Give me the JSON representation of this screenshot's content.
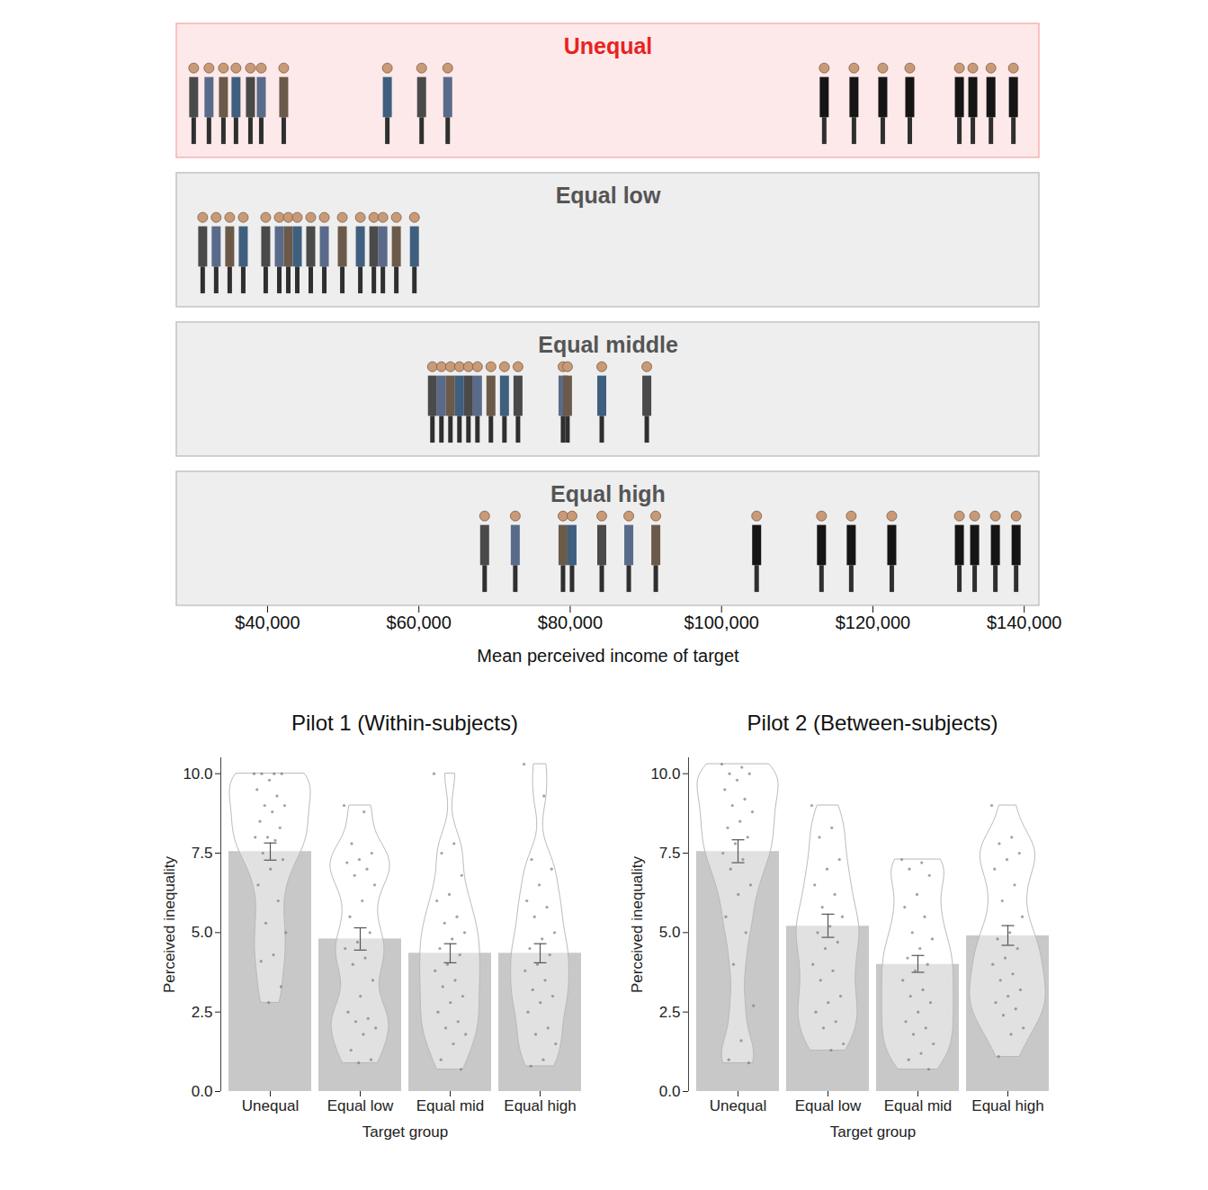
{
  "chart_data": [
    {
      "type": "dot",
      "x_label": "Mean perceived income of target",
      "xlim": [
        28000,
        142000
      ],
      "xticks": [
        {
          "value": 40000,
          "label": "$40,000"
        },
        {
          "value": 60000,
          "label": "$60,000"
        },
        {
          "value": 80000,
          "label": "$80,000"
        },
        {
          "value": 100000,
          "label": "$100,000"
        },
        {
          "value": 120000,
          "label": "$120,000"
        },
        {
          "value": 140000,
          "label": "$140,000"
        }
      ],
      "series": [
        {
          "name": "Unequal",
          "color": "#e8231f",
          "values": [
            30240,
            32260,
            34170,
            35830,
            37740,
            39170,
            42140,
            55830,
            60360,
            63810,
            113570,
            117500,
            121310,
            124880,
            131430,
            133210,
            135600,
            138570
          ]
        },
        {
          "name": "Equal low",
          "color": "#555555",
          "values": [
            31430,
            33210,
            35000,
            36790,
            39760,
            41550,
            42740,
            43930,
            45710,
            47500,
            49880,
            52260,
            54050,
            55240,
            57020,
            59410
          ]
        },
        {
          "name": "Equal middle",
          "color": "#555555",
          "values": [
            61790,
            62980,
            64170,
            65360,
            66550,
            67740,
            69520,
            71310,
            73100,
            79050,
            79640,
            84170,
            90120
          ]
        },
        {
          "name": "Equal high",
          "color": "#555555",
          "values": [
            68690,
            72740,
            79050,
            80240,
            84170,
            87740,
            91310,
            104640,
            113210,
            117140,
            122500,
            131430,
            133450,
            136190,
            138930
          ]
        }
      ]
    },
    {
      "type": "bar",
      "title": "Pilot 1 (Within-subjects)",
      "x_label": "Target group",
      "y_label": "Perceived inequality",
      "categories": [
        "Unequal",
        "Equal low",
        "Equal mid",
        "Equal high"
      ],
      "values": [
        7.55,
        4.8,
        4.35,
        4.35
      ],
      "error_low": [
        7.28,
        4.45,
        4.05,
        4.05
      ],
      "error_high": [
        7.82,
        5.15,
        4.65,
        4.65
      ],
      "points": [
        [
          10,
          10,
          10,
          10,
          9.8,
          9.5,
          9.3,
          9,
          9,
          8.8,
          8.5,
          8.3,
          8,
          8,
          7.9,
          7.5,
          7.3,
          7,
          6.5,
          6,
          5.3,
          5,
          4.3,
          4.1,
          3.3,
          2.8
        ],
        [
          9,
          8.8,
          7.8,
          7.5,
          7.3,
          7.2,
          7,
          6.8,
          6.5,
          6,
          5.5,
          5,
          4.7,
          4.5,
          4.2,
          4,
          3.5,
          3,
          2.5,
          2.3,
          2.2,
          2,
          1.8,
          1.3,
          1,
          0.9
        ],
        [
          10,
          7.8,
          7.5,
          6.8,
          6.2,
          6,
          5.5,
          5.3,
          5,
          4.8,
          4.5,
          4.3,
          4,
          3.8,
          3.5,
          3.3,
          3,
          2.8,
          2.5,
          2.2,
          2,
          1.8,
          1.5,
          1,
          0.7
        ],
        [
          10.3,
          9.3,
          7.3,
          7,
          6.5,
          6,
          5.8,
          5.5,
          5,
          4.8,
          4.5,
          4.3,
          4,
          3.8,
          3.5,
          3.2,
          3,
          2.8,
          2.5,
          2,
          1.8,
          1.5,
          1,
          0.8
        ]
      ],
      "color": "#c8c8c8",
      "ylim": [
        0,
        10.5
      ],
      "yticks": [
        {
          "value": 0,
          "label": "0.0"
        },
        2.5,
        {
          "value": 5,
          "label": "5.0"
        },
        7.5,
        {
          "value": 10,
          "label": "10.0"
        }
      ]
    },
    {
      "type": "bar",
      "title": "Pilot 2 (Between-subjects)",
      "x_label": "Target group",
      "y_label": "Perceived inequality",
      "categories": [
        "Unequal",
        "Equal low",
        "Equal mid",
        "Equal high"
      ],
      "values": [
        7.55,
        5.2,
        4.0,
        4.9
      ],
      "error_low": [
        7.2,
        4.85,
        3.75,
        4.6
      ],
      "error_high": [
        7.92,
        5.58,
        4.28,
        5.22
      ],
      "points": [
        [
          10.3,
          10.2,
          10,
          10,
          9.8,
          9.5,
          9.2,
          9,
          8.8,
          8.5,
          8.3,
          8,
          7.8,
          7.5,
          7.3,
          7,
          6.5,
          6.2,
          5.5,
          5,
          4,
          2.7,
          1.6,
          1,
          0.9
        ],
        [
          9,
          8.3,
          8,
          7.3,
          7,
          6.5,
          6.2,
          5.8,
          5.5,
          5.2,
          5,
          4.7,
          4.5,
          4,
          3.8,
          3.5,
          3,
          2.8,
          2.5,
          2.2,
          2,
          1.5,
          1.3
        ],
        [
          7.3,
          7.2,
          7,
          6.8,
          6.2,
          5.8,
          5.5,
          5,
          4.8,
          4.5,
          4.2,
          4,
          3.8,
          3.5,
          3.2,
          3,
          2.8,
          2.5,
          2.2,
          2,
          1.8,
          1.5,
          1.2,
          1,
          0.7
        ],
        [
          9,
          8,
          7.8,
          7.5,
          7.3,
          7,
          6.5,
          6,
          5.5,
          5,
          4.8,
          4.5,
          4.2,
          4,
          3.7,
          3.5,
          3.2,
          3,
          2.8,
          2.6,
          2.4,
          2,
          1.8,
          1.1
        ]
      ],
      "color": "#c8c8c8",
      "ylim": [
        0,
        10.5
      ],
      "yticks": [
        {
          "value": 0,
          "label": "0.0"
        },
        2.5,
        {
          "value": 5,
          "label": "5.0"
        },
        7.5,
        {
          "value": 10,
          "label": "10.0"
        }
      ]
    }
  ]
}
